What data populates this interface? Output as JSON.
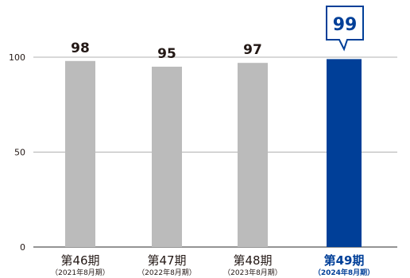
{
  "chart_data": {
    "type": "bar",
    "categories": [
      "第46期",
      "第47期",
      "第48期",
      "第49期"
    ],
    "subcategories": [
      "（2021年8月期）",
      "（2022年8月期）",
      "（2023年8月期）",
      "（2024年8月期）"
    ],
    "values": [
      98,
      95,
      97,
      99
    ],
    "value_labels": [
      "98",
      "95",
      "97",
      "99"
    ],
    "yticks": [
      "0",
      "50",
      "100"
    ],
    "ylim": [
      0,
      110
    ],
    "grid": true,
    "highlight_index": 3,
    "colors": {
      "bar": "#bbbbbb",
      "highlight": "#003f98",
      "text": "#231815",
      "axis": "#555555",
      "grid": "#999999"
    },
    "title": "",
    "xlabel": "",
    "ylabel": ""
  }
}
